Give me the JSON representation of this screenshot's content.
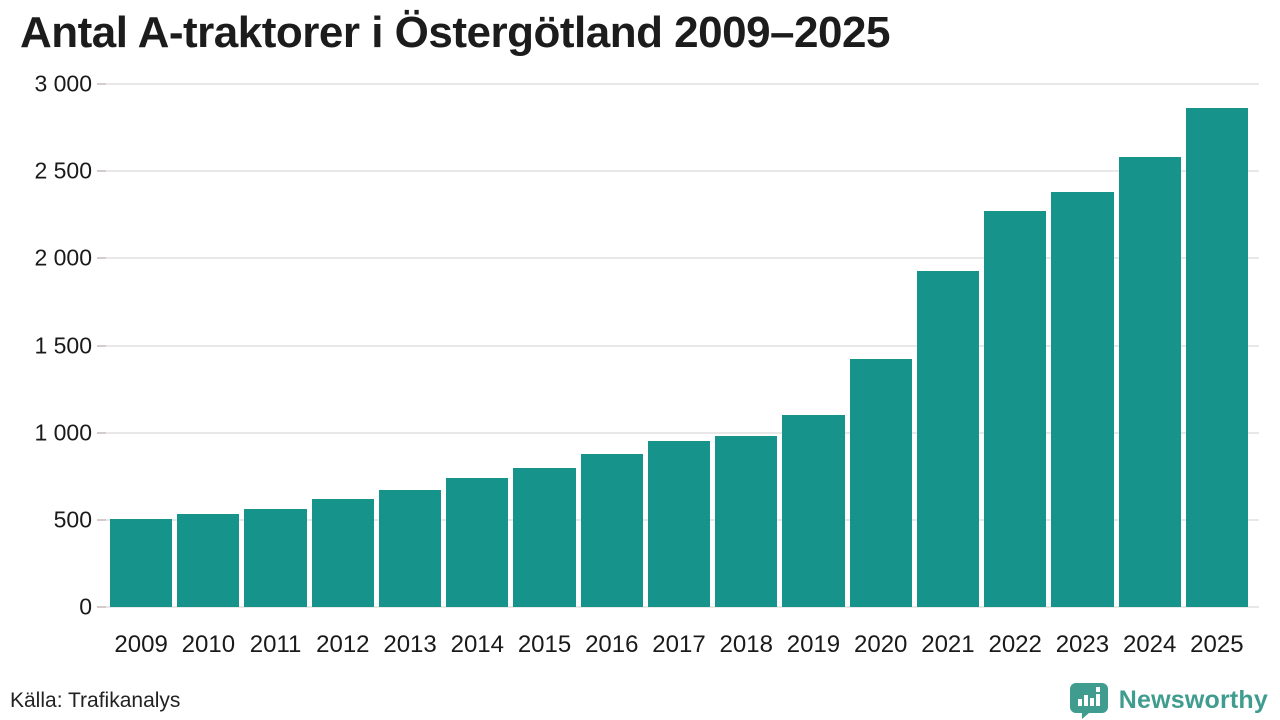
{
  "title": "Antal A-traktorer i Östergötland 2009–2025",
  "chart_data": {
    "type": "bar",
    "title": "Antal A-traktorer i Östergötland 2009–2025",
    "categories": [
      "2009",
      "2010",
      "2011",
      "2012",
      "2013",
      "2014",
      "2015",
      "2016",
      "2017",
      "2018",
      "2019",
      "2020",
      "2021",
      "2022",
      "2023",
      "2024",
      "2025"
    ],
    "values": [
      505,
      535,
      560,
      620,
      670,
      740,
      795,
      880,
      950,
      980,
      1100,
      1420,
      1925,
      2270,
      2380,
      2580,
      2865
    ],
    "ylim": [
      0,
      3000
    ],
    "yticks": [
      0,
      500,
      1000,
      1500,
      2000,
      2500,
      3000
    ],
    "ytick_labels": [
      "0",
      "500",
      "1 000",
      "1 500",
      "2 000",
      "2 500",
      "3 000"
    ],
    "xlabel": "",
    "ylabel": "",
    "grid": true,
    "legend": "none",
    "bar_color": "#16948c",
    "gridline_color": "#e8e8e8"
  },
  "footer": {
    "source": "Källa: Trafikanalys",
    "brand": "Newsworthy",
    "brand_color": "#3f9c8e",
    "logo_icon": "newsworthy-speech-bubble-bar-chart-icon"
  }
}
